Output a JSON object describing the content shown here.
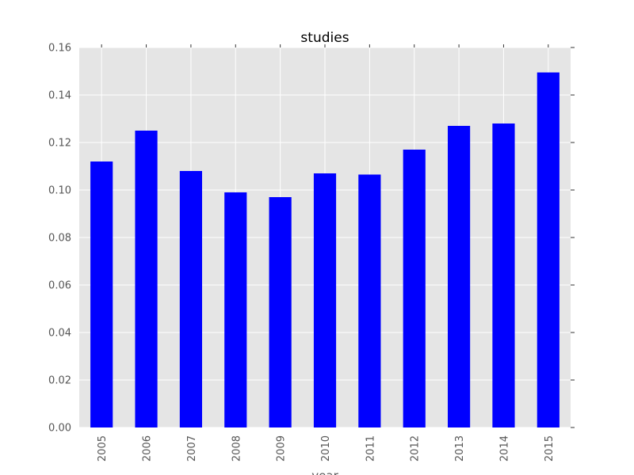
{
  "chart_data": {
    "type": "bar",
    "title": "studies",
    "xlabel": "year",
    "ylabel": "",
    "categories": [
      "2005",
      "2006",
      "2007",
      "2008",
      "2009",
      "2010",
      "2011",
      "2012",
      "2013",
      "2014",
      "2015"
    ],
    "values": [
      0.112,
      0.125,
      0.108,
      0.099,
      0.097,
      0.107,
      0.1065,
      0.117,
      0.127,
      0.128,
      0.1495
    ],
    "ylim": [
      0,
      0.16
    ],
    "yticks": [
      "0.00",
      "0.02",
      "0.04",
      "0.06",
      "0.08",
      "0.10",
      "0.12",
      "0.14",
      "0.16"
    ],
    "grid": true,
    "legend": "none",
    "colors": {
      "bar": "#0000ff",
      "plot_background": "#e5e5e5",
      "grid": "#ffffff",
      "tick_text": "#555555"
    }
  }
}
